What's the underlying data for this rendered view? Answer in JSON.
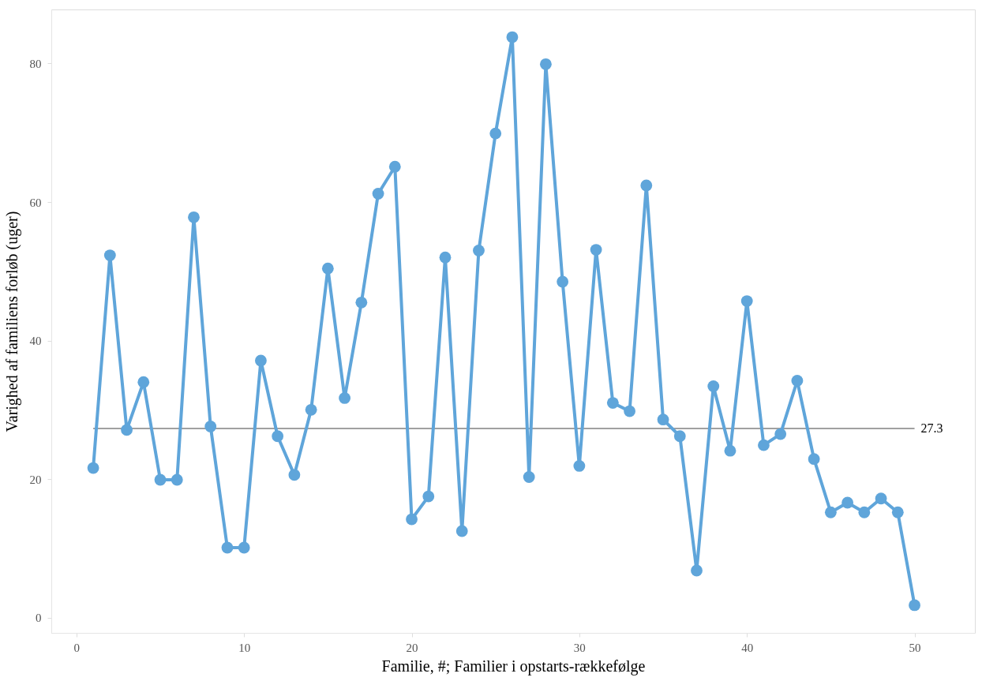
{
  "chart_data": {
    "type": "line",
    "xlabel": "Familie, #; Familier i opstarts-rækkefølge",
    "ylabel": "Varighed af familiens forløb (uger)",
    "x": [
      1,
      2,
      3,
      4,
      5,
      6,
      7,
      8,
      9,
      10,
      11,
      12,
      13,
      14,
      15,
      16,
      17,
      18,
      19,
      20,
      21,
      22,
      23,
      24,
      25,
      26,
      27,
      28,
      29,
      30,
      31,
      32,
      33,
      34,
      35,
      36,
      37,
      38,
      39,
      40,
      41,
      42,
      43,
      44,
      45,
      46,
      47,
      48,
      49,
      50
    ],
    "series": [
      {
        "color": "#5fa5da",
        "values": [
          21.6,
          52.3,
          27.1,
          34.0,
          19.9,
          19.9,
          57.8,
          27.6,
          10.1,
          10.1,
          37.1,
          26.2,
          20.6,
          30.0,
          50.4,
          31.7,
          45.5,
          61.2,
          65.1,
          14.2,
          17.5,
          52.0,
          12.5,
          53.0,
          69.9,
          83.8,
          20.3,
          79.9,
          48.5,
          21.9,
          53.1,
          31.0,
          29.8,
          62.4,
          28.6,
          26.2,
          6.8,
          33.4,
          24.1,
          45.7,
          24.9,
          26.5,
          34.2,
          22.9,
          15.2,
          16.6,
          15.2,
          17.2,
          15.2,
          1.8
        ]
      }
    ],
    "xlim": [
      -1.5,
      53.6
    ],
    "ylim": [
      -2.2,
      87.8
    ],
    "xticks": [
      0,
      10,
      20,
      30,
      40,
      50
    ],
    "yticks": [
      0,
      20,
      40,
      60,
      80
    ],
    "ref_lines": [
      {
        "axis": "y",
        "value": 27.3,
        "label": "27.3",
        "color": "#808080"
      }
    ],
    "grid": false,
    "marker": "circle",
    "line_style": "solid"
  }
}
